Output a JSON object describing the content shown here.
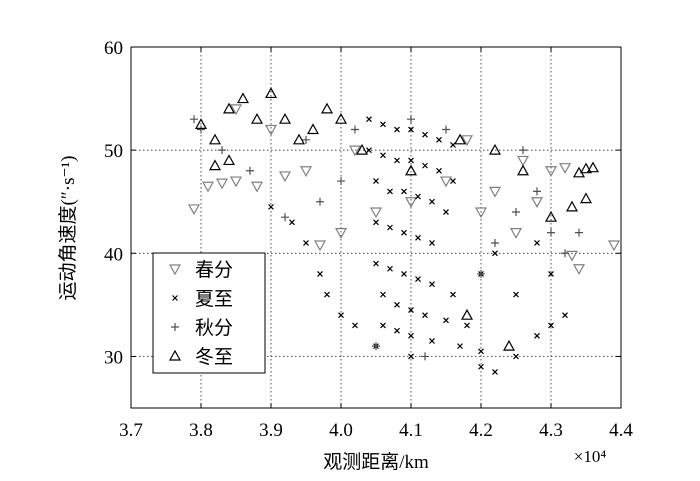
{
  "chart_data": {
    "type": "scatter",
    "x_label": "观测距离/km",
    "y_label": "运动角速度(″·s⁻¹)",
    "x_multiplier": "×10⁴",
    "xlim": [
      3.7,
      4.4
    ],
    "ylim": [
      25,
      60
    ],
    "xticks": [
      3.7,
      3.8,
      3.9,
      {
        "value": 4,
        "label": "4.0"
      },
      4.1,
      4.2,
      4.3,
      4.4
    ],
    "yticks": [
      30,
      40,
      50,
      60
    ],
    "grid": true,
    "legend": "lower left",
    "series": [
      {
        "name": "春分",
        "color": "#808080",
        "marker": "triangle_down",
        "x": [
          3.79,
          3.81,
          3.83,
          3.85,
          3.88,
          3.92,
          3.95,
          3.97,
          4.0,
          4.05,
          4.1,
          4.15,
          4.2,
          4.25,
          4.28,
          4.3,
          4.32,
          4.33,
          4.34,
          4.39,
          4.22,
          4.02,
          3.9,
          3.85,
          4.18,
          4.26
        ],
        "values": [
          44.3,
          46.5,
          46.8,
          47,
          46.5,
          47.5,
          48,
          40.8,
          42,
          44,
          45,
          47,
          44,
          42,
          45,
          48,
          48.3,
          39.8,
          38.5,
          40.8,
          46,
          50,
          52,
          54,
          51,
          49
        ]
      },
      {
        "name": "夏至",
        "color": "#000000",
        "marker": "x",
        "x": [
          3.9,
          3.93,
          3.95,
          3.97,
          3.98,
          4.0,
          4.02,
          4.05,
          4.1,
          4.2,
          4.22,
          4.25,
          4.28,
          4.3,
          4.32,
          4.25,
          4.2,
          4.22,
          4.28,
          4.3,
          4.04,
          4.06,
          4.08,
          4.1,
          4.12,
          4.14,
          4.16,
          4.04,
          4.06,
          4.08,
          4.1,
          4.12,
          4.14,
          4.16,
          4.05,
          4.07,
          4.09,
          4.11,
          4.13,
          4.15,
          4.05,
          4.07,
          4.09,
          4.11,
          4.13,
          4.05,
          4.07,
          4.09,
          4.11,
          4.13,
          4.16,
          4.06,
          4.08,
          4.1,
          4.12,
          4.15,
          4.18,
          4.06,
          4.08,
          4.1,
          4.13,
          4.17,
          4.2
        ],
        "values": [
          44.5,
          43,
          41,
          38,
          36,
          34,
          33,
          31,
          30,
          29,
          28.5,
          30,
          32,
          33,
          34,
          36,
          38,
          40,
          41,
          38,
          53,
          52.5,
          52,
          52,
          51.5,
          51,
          50.5,
          50,
          49.5,
          49,
          49,
          48.5,
          48,
          47,
          47,
          46,
          46,
          45.5,
          45,
          44,
          43,
          42.5,
          42,
          41.5,
          41,
          39,
          38.5,
          38,
          37.5,
          37,
          36,
          36,
          35,
          34.5,
          34,
          33.5,
          33,
          33,
          32.5,
          32,
          31.5,
          31,
          30.5
        ]
      },
      {
        "name": "秋分",
        "color": "#505050",
        "marker": "plus",
        "x": [
          3.79,
          3.8,
          3.83,
          3.87,
          3.92,
          3.97,
          4.0,
          4.05,
          4.12,
          4.2,
          4.22,
          4.25,
          4.28,
          4.3,
          4.32,
          4.34,
          4.15,
          4.1,
          4.02,
          3.95,
          4.26
        ],
        "values": [
          53,
          52,
          50,
          48,
          43.5,
          45,
          47,
          31,
          30,
          38,
          41,
          44,
          46,
          42,
          40,
          42,
          52,
          53,
          52,
          51,
          50
        ]
      },
      {
        "name": "冬至",
        "color": "#000000",
        "marker": "triangle_up",
        "x": [
          3.8,
          3.82,
          3.84,
          3.86,
          3.88,
          3.9,
          3.92,
          3.94,
          3.96,
          3.98,
          4.0,
          4.03,
          4.1,
          4.17,
          4.22,
          4.26,
          4.3,
          4.33,
          4.35,
          4.34,
          4.35,
          4.36,
          3.84,
          3.82,
          4.18,
          4.24
        ],
        "values": [
          52.5,
          51,
          54,
          55,
          53,
          55.5,
          53,
          51,
          52,
          54,
          53,
          50,
          48,
          51,
          50,
          48,
          43.5,
          44.5,
          45.3,
          47.8,
          48.2,
          48.3,
          49,
          48.5,
          34,
          31
        ]
      }
    ]
  }
}
